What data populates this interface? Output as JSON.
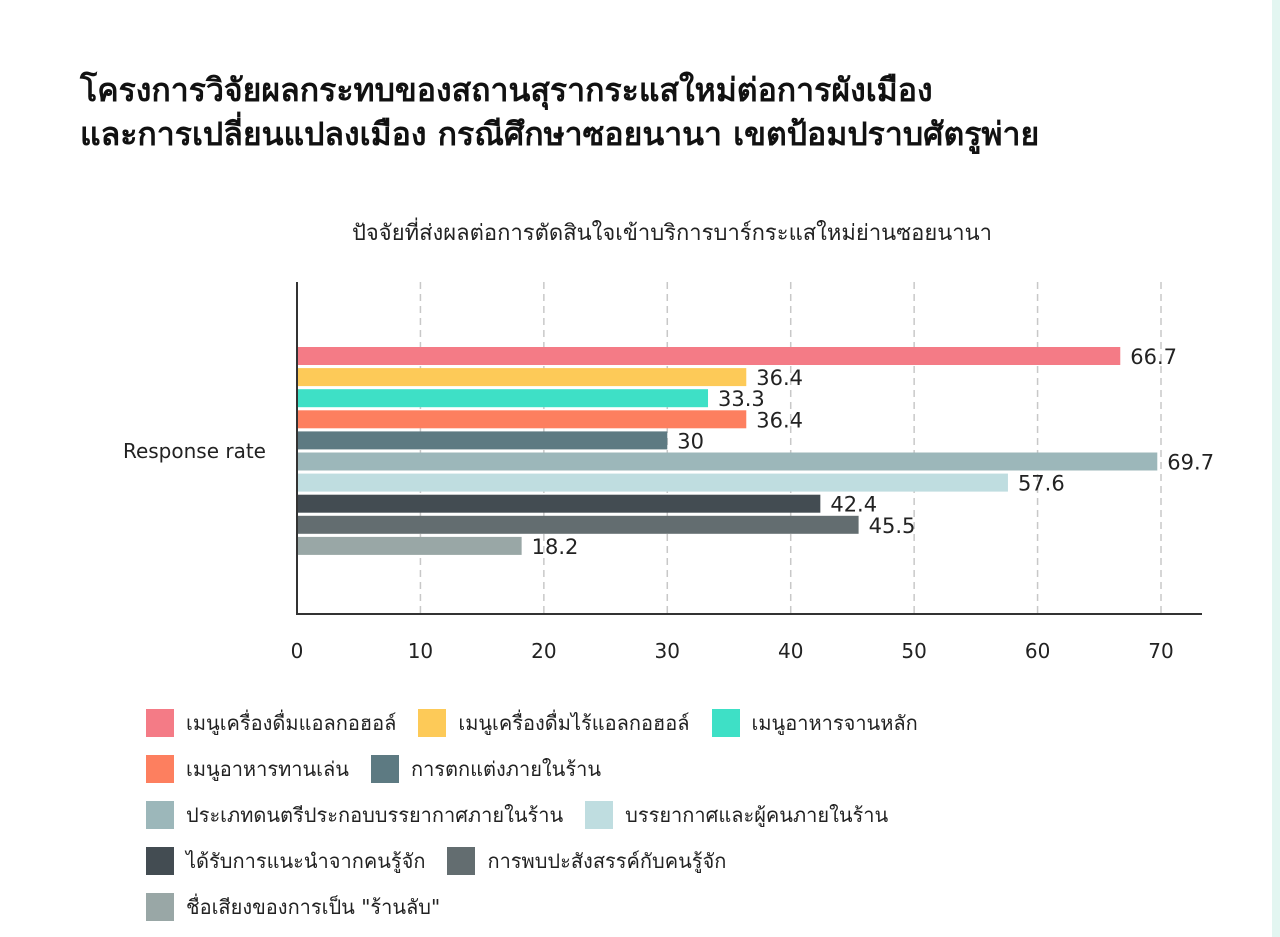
{
  "title_lines": [
    "โครงการวิจัยผลกระทบของสถานสุรากระแสใหม่ต่อการผังเมือง",
    "และการเปลี่ยนแปลงเมือง กรณีศึกษาซอยนานา เขตป้อมปราบศัตรูพ่าย"
  ],
  "chart_data": {
    "type": "bar",
    "orientation": "horizontal",
    "title": "ปัจจัยที่ส่งผลต่อการตัดสินใจเข้าบริการบาร์กระแสใหม่ย่านซอยนานา",
    "categories": [
      "Response rate"
    ],
    "xlim": [
      0,
      70
    ],
    "xticks": [
      0,
      10,
      20,
      30,
      40,
      50,
      60,
      70
    ],
    "grid": "vertical-dashed",
    "legend_position": "bottom",
    "series": [
      {
        "name": "เมนูเครื่องดื่มแอลกอฮอล์",
        "values": [
          66.7
        ],
        "color": "#f47b86"
      },
      {
        "name": "เมนูเครื่องดื่มไร้แอลกอฮอล์",
        "values": [
          36.4
        ],
        "color": "#fdca58"
      },
      {
        "name": "เมนูอาหารจานหลัก",
        "values": [
          33.3
        ],
        "color": "#3ee0c6"
      },
      {
        "name": "เมนูอาหารทานเล่น",
        "values": [
          36.4
        ],
        "color": "#fd7f5f"
      },
      {
        "name": "การตกแต่งภายในร้าน",
        "values": [
          30
        ],
        "color": "#5d7a82"
      },
      {
        "name": "ประเภทดนตรีประกอบบรรยากาศภายในร้าน",
        "values": [
          69.7
        ],
        "color": "#9cb7ba"
      },
      {
        "name": "บรรยากาศและผู้คนภายในร้าน",
        "values": [
          57.6
        ],
        "color": "#bfdde0"
      },
      {
        "name": "ได้รับการแนะนำจากคนรู้จัก",
        "values": [
          42.4
        ],
        "color": "#434c52"
      },
      {
        "name": "การพบปะสังสรรค์กับคนรู้จัก",
        "values": [
          45.5
        ],
        "color": "#636d70"
      },
      {
        "name": "ชื่อเสียงของการเป็น \"ร้านลับ\"",
        "values": [
          18.2
        ],
        "color": "#99a7a6"
      }
    ]
  },
  "legend_rows": [
    [
      0,
      1,
      2
    ],
    [
      3,
      4
    ],
    [
      5,
      6
    ],
    [
      7,
      8
    ],
    [
      9
    ]
  ]
}
